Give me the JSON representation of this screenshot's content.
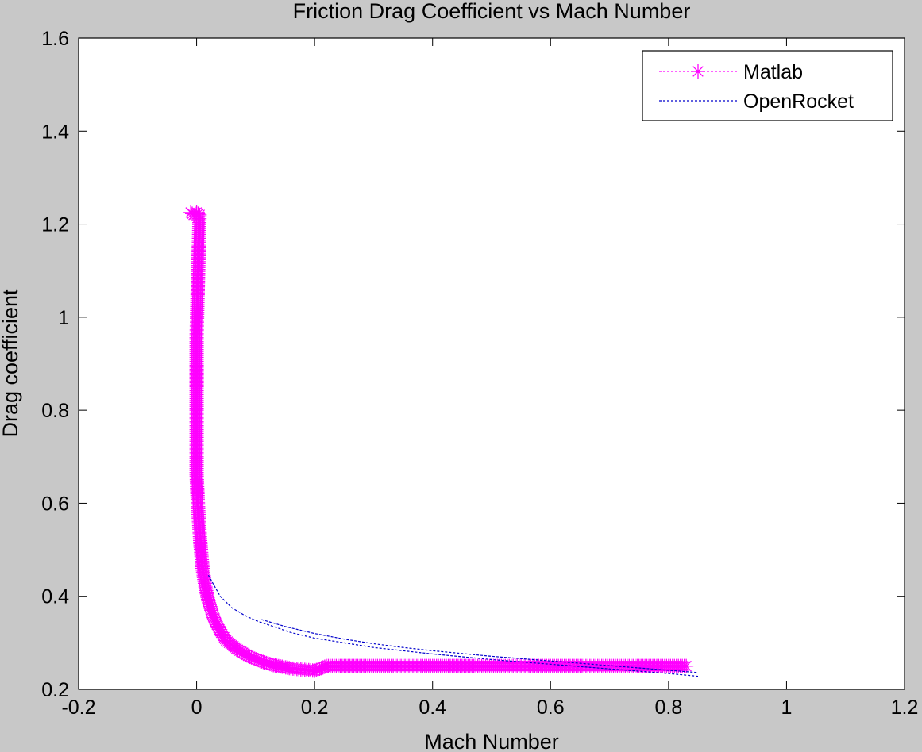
{
  "chart_data": {
    "type": "line",
    "title": "Friction Drag Coefficient vs Mach Number",
    "xlabel": "Mach Number",
    "ylabel": "Drag coefficient",
    "xlim": [
      -0.2,
      1.2
    ],
    "ylim": [
      0.2,
      1.6
    ],
    "xticks": [
      "-0.2",
      "0",
      "0.2",
      "0.4",
      "0.6",
      "0.8",
      "1",
      "1.2"
    ],
    "yticks": [
      "0.2",
      "0.4",
      "0.6",
      "0.8",
      "1",
      "1.2",
      "1.4",
      "1.6"
    ],
    "grid": false,
    "legend_position": "top-right",
    "series": [
      {
        "name": "Matlab",
        "color": "#ff00ff",
        "marker": "asterisk",
        "line_style": "dotted",
        "description_points": "dense markers along curve",
        "x": [
          -0.01,
          -0.005,
          0.0,
          0.005,
          0.0,
          0.0,
          0.0,
          0.0,
          0.0,
          0.001,
          0.002,
          0.003,
          0.004,
          0.005,
          0.006,
          0.008,
          0.01,
          0.015,
          0.02,
          0.03,
          0.04,
          0.05,
          0.07,
          0.09,
          0.11,
          0.13,
          0.16,
          0.2,
          0.22,
          0.3,
          0.4,
          0.5,
          0.6,
          0.7,
          0.8,
          0.83
        ],
        "y": [
          1.225,
          1.22,
          1.225,
          1.22,
          0.96,
          0.825,
          0.75,
          0.7,
          0.662,
          0.632,
          0.605,
          0.58,
          0.56,
          0.54,
          0.52,
          0.49,
          0.46,
          0.42,
          0.39,
          0.35,
          0.325,
          0.305,
          0.285,
          0.27,
          0.26,
          0.252,
          0.245,
          0.24,
          0.25,
          0.25,
          0.25,
          0.25,
          0.25,
          0.25,
          0.25,
          0.25
        ]
      },
      {
        "name": "OpenRocket",
        "color": "#0000cc",
        "marker": "none",
        "line_style": "dashed",
        "segments": [
          {
            "x": [
              0.02,
              0.04,
              0.06,
              0.08,
              0.1,
              0.13,
              0.16,
              0.2,
              0.25,
              0.3,
              0.35,
              0.4,
              0.45,
              0.5,
              0.55,
              0.6,
              0.65,
              0.7,
              0.75,
              0.8,
              0.85
            ],
            "y": [
              0.445,
              0.4,
              0.375,
              0.36,
              0.348,
              0.335,
              0.322,
              0.31,
              0.3,
              0.29,
              0.283,
              0.276,
              0.27,
              0.264,
              0.259,
              0.254,
              0.249,
              0.244,
              0.239,
              0.234,
              0.228
            ]
          },
          {
            "x": [
              0.11,
              0.15,
              0.2,
              0.25,
              0.3,
              0.35,
              0.4,
              0.45,
              0.5,
              0.55,
              0.6,
              0.65,
              0.7,
              0.75,
              0.8,
              0.85
            ],
            "y": [
              0.35,
              0.335,
              0.32,
              0.308,
              0.298,
              0.29,
              0.283,
              0.277,
              0.271,
              0.266,
              0.261,
              0.256,
              0.251,
              0.246,
              0.241,
              0.236
            ]
          }
        ]
      }
    ]
  }
}
